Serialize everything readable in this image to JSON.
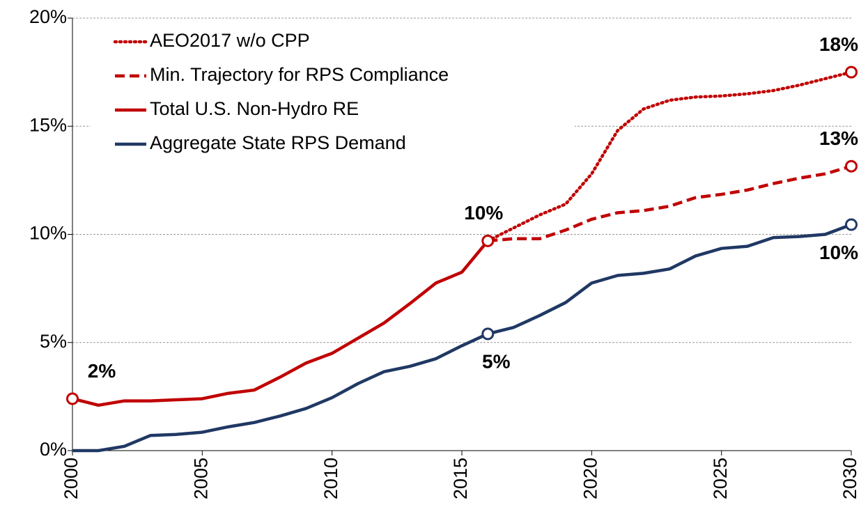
{
  "chart_data": {
    "type": "line",
    "x": [
      2000,
      2001,
      2002,
      2003,
      2004,
      2005,
      2006,
      2007,
      2008,
      2009,
      2010,
      2011,
      2012,
      2013,
      2014,
      2015,
      2016,
      2017,
      2018,
      2019,
      2020,
      2021,
      2022,
      2023,
      2024,
      2025,
      2026,
      2027,
      2028,
      2029,
      2030
    ],
    "xlim": [
      2000,
      2030
    ],
    "xticks": [
      2000,
      2005,
      2010,
      2015,
      2020,
      2025,
      2030
    ],
    "ylim": [
      0,
      20
    ],
    "yticks": [
      {
        "value": 0,
        "label": "0%"
      },
      {
        "value": 5,
        "label": "5%"
      },
      {
        "value": 10,
        "label": "10%"
      },
      {
        "value": 15,
        "label": "15%"
      },
      {
        "value": 20,
        "label": "20%"
      }
    ],
    "grid": true,
    "legend": "upper left",
    "series": [
      {
        "name": "AEO2017 w/o CPP",
        "color": "#c00000",
        "dash": "dotted",
        "values": [
          null,
          null,
          null,
          null,
          null,
          null,
          null,
          null,
          null,
          null,
          null,
          null,
          null,
          null,
          null,
          null,
          9.7,
          10.3,
          10.9,
          11.4,
          12.8,
          14.8,
          15.8,
          16.2,
          16.35,
          16.4,
          16.5,
          16.65,
          16.9,
          17.2,
          17.5
        ],
        "value_labels": [
          null,
          null,
          null,
          null,
          null,
          null,
          null,
          null,
          null,
          null,
          null,
          null,
          null,
          null,
          null,
          null,
          null,
          null,
          null,
          null,
          null,
          null,
          null,
          null,
          null,
          null,
          null,
          null,
          null,
          null,
          "18%"
        ]
      },
      {
        "name": "Min. Trajectory for RPS Compliance",
        "color": "#c00000",
        "dash": "dashed",
        "values": [
          null,
          null,
          null,
          null,
          null,
          null,
          null,
          null,
          null,
          null,
          null,
          null,
          null,
          null,
          null,
          null,
          9.7,
          9.8,
          9.8,
          10.2,
          10.7,
          11.0,
          11.1,
          11.3,
          11.7,
          11.85,
          12.05,
          12.35,
          12.6,
          12.8,
          13.15
        ],
        "value_labels": [
          null,
          null,
          null,
          null,
          null,
          null,
          null,
          null,
          null,
          null,
          null,
          null,
          null,
          null,
          null,
          null,
          null,
          null,
          null,
          null,
          null,
          null,
          null,
          null,
          null,
          null,
          null,
          null,
          null,
          null,
          "13%"
        ]
      },
      {
        "name": "Total U.S. Non-Hydro RE",
        "color": "#c00000",
        "dash": "solid",
        "values": [
          2.4,
          2.1,
          2.3,
          2.3,
          2.35,
          2.4,
          2.65,
          2.8,
          3.4,
          4.05,
          4.5,
          5.2,
          5.9,
          6.8,
          7.75,
          8.25,
          9.7,
          null,
          null,
          null,
          null,
          null,
          null,
          null,
          null,
          null,
          null,
          null,
          null,
          null,
          null
        ],
        "value_labels": [
          "2%",
          null,
          null,
          null,
          null,
          null,
          null,
          null,
          null,
          null,
          null,
          null,
          null,
          null,
          null,
          null,
          "10%",
          null,
          null,
          null,
          null,
          null,
          null,
          null,
          null,
          null,
          null,
          null,
          null,
          null,
          null
        ]
      },
      {
        "name": "Aggregate State RPS Demand",
        "color": "#203864",
        "dash": "solid",
        "values": [
          0,
          0,
          0.2,
          0.7,
          0.75,
          0.85,
          1.1,
          1.3,
          1.6,
          1.95,
          2.45,
          3.1,
          3.65,
          3.9,
          4.25,
          4.85,
          5.4,
          5.7,
          6.25,
          6.85,
          7.75,
          8.1,
          8.2,
          8.4,
          9.0,
          9.35,
          9.45,
          9.85,
          9.9,
          10.0,
          10.45
        ],
        "value_labels": [
          null,
          null,
          null,
          null,
          null,
          null,
          null,
          null,
          null,
          null,
          null,
          null,
          null,
          null,
          null,
          null,
          "5%",
          null,
          null,
          null,
          null,
          null,
          null,
          null,
          null,
          null,
          null,
          null,
          null,
          null,
          "10%"
        ]
      }
    ]
  }
}
